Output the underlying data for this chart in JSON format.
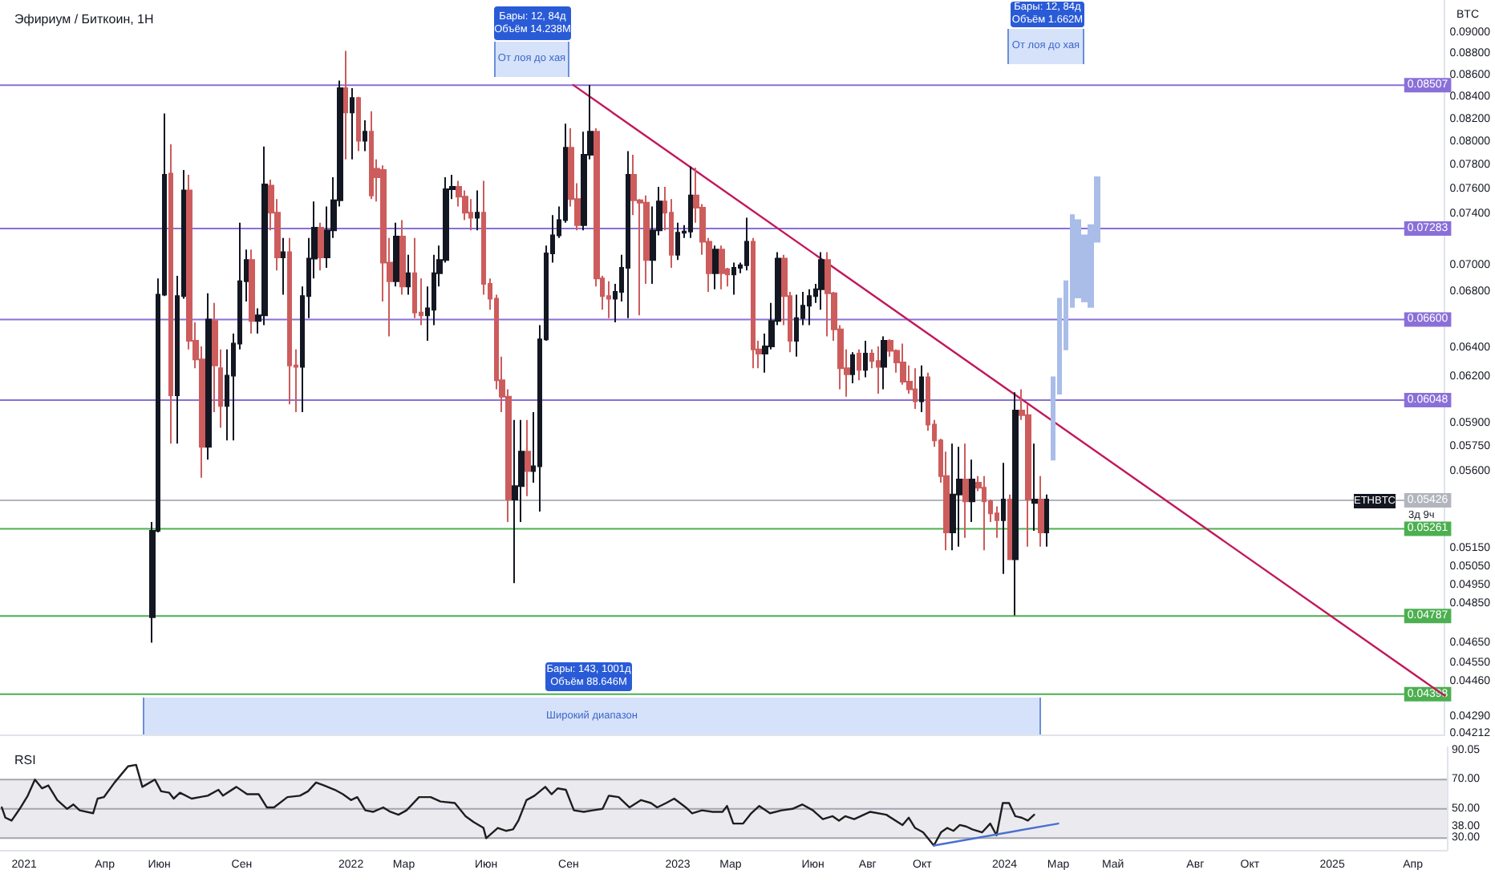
{
  "chart_data": [
    {
      "type": "candlestick",
      "title": "Эфириум / Биткоин, 1Н",
      "ylabel": "BTC",
      "log": "y",
      "tick_labels": "y",
      "xlim": [
        "2020-12-05",
        "2025-05-09"
      ],
      "ylim": [
        0.0421,
        0.0933
      ],
      "yticks": [
        {
          "value": 0.09,
          "label": "0.09000"
        },
        {
          "value": 0.088,
          "label": "0.08800"
        },
        {
          "value": 0.086,
          "label": "0.08600"
        },
        {
          "value": 0.084,
          "label": "0.08400"
        },
        {
          "value": 0.082,
          "label": "0.08200"
        },
        {
          "value": 0.08,
          "label": "0.08000"
        },
        {
          "value": 0.078,
          "label": "0.07800"
        },
        {
          "value": 0.076,
          "label": "0.07600"
        },
        {
          "value": 0.074,
          "label": "0.07400"
        },
        {
          "value": 0.07,
          "label": "0.07000"
        },
        {
          "value": 0.068,
          "label": "0.06800"
        },
        {
          "value": 0.064,
          "label": "0.06400"
        },
        {
          "value": 0.062,
          "label": "0.06200"
        },
        {
          "value": 0.059,
          "label": "0.05900"
        },
        {
          "value": 0.0575,
          "label": "0.05750"
        },
        {
          "value": 0.056,
          "label": "0.05600"
        },
        {
          "value": 0.0515,
          "label": "0.05150"
        },
        {
          "value": 0.0505,
          "label": "0.05050"
        },
        {
          "value": 0.0495,
          "label": "0.04950"
        },
        {
          "value": 0.0485,
          "label": "0.04850"
        },
        {
          "value": 0.0465,
          "label": "0.04650"
        },
        {
          "value": 0.0455,
          "label": "0.04550"
        },
        {
          "value": 0.0446,
          "label": "0.04460"
        },
        {
          "value": 0.0429,
          "label": "0.04290"
        },
        {
          "value": 0.04212,
          "label": "0.04212"
        }
      ],
      "ref_lines": [
        {
          "axis": "y",
          "value": 0.08507,
          "label": "0.08507",
          "color": "#8a6fd8"
        },
        {
          "axis": "y",
          "value": 0.07283,
          "label": "0.07283",
          "color": "#8a6fd8"
        },
        {
          "axis": "y",
          "value": 0.066,
          "label": "0.06600",
          "color": "#8a6fd8"
        },
        {
          "axis": "y",
          "value": 0.06048,
          "label": "0.06048",
          "color": "#8a6fd8"
        },
        {
          "axis": "y",
          "value": 0.05426,
          "label": "0.05426",
          "color": "#b2b5be"
        },
        {
          "axis": "y",
          "value": 0.05261,
          "label": "0.05261",
          "color": "#4caf50"
        },
        {
          "axis": "y",
          "value": 0.04787,
          "label": "0.04787",
          "color": "#4caf50"
        },
        {
          "axis": "y",
          "value": 0.04398,
          "label": "0.04398",
          "color": "#4caf50"
        }
      ],
      "annotations": [
        "Бары: 12, 84д\nОбъём 14.238M",
        "От лоя до хая",
        "Бары: 12, 84д\nОбъём 1.662M",
        "От лоя до хая",
        "Бары: 143, 1001д\nОбъём 88.646M",
        "Широкий диапазон",
        "ETHBTC",
        "3д 9ч"
      ],
      "series": [
        {
          "type": "line",
          "color": "#c2185b",
          "x": [
            "2022-09-07",
            "2025-05-09"
          ],
          "values": [
            0.0851,
            0.0439
          ]
        },
        {
          "type": "candlestick",
          "color": "#a9bde8",
          "x": [
            "2024-02-26",
            "2024-03-04",
            "2024-03-11",
            "2024-03-18",
            "2024-03-25",
            "2024-04-01",
            "2024-04-08",
            "2024-04-15"
          ],
          "ohlc": [
            [
              0.0567,
              0.062,
              0.0567,
              0.062
            ],
            [
              0.0609,
              0.0675,
              0.0609,
              0.0675
            ],
            [
              0.0639,
              0.0688,
              0.0639,
              0.0688
            ],
            [
              0.0669,
              0.0739,
              0.0669,
              0.0739
            ],
            [
              0.0676,
              0.0735,
              0.0676,
              0.0735
            ],
            [
              0.0673,
              0.0723,
              0.0673,
              0.0723
            ],
            [
              0.0669,
              0.0731,
              0.0669,
              0.0731
            ],
            [
              0.0718,
              0.077,
              0.0718,
              0.077
            ]
          ]
        },
        {
          "x": [
            "2021-05-24",
            "2021-05-31",
            "2021-06-07",
            "2021-06-14",
            "2021-06-21",
            "2021-06-28",
            "2021-07-05",
            "2021-07-12",
            "2021-07-19",
            "2021-07-26",
            "2021-08-02",
            "2021-08-09",
            "2021-08-16",
            "2021-08-23",
            "2021-08-30",
            "2021-09-06",
            "2021-09-13",
            "2021-09-20",
            "2021-09-27",
            "2021-10-04",
            "2021-10-11",
            "2021-10-18",
            "2021-10-25",
            "2021-11-01",
            "2021-11-08",
            "2021-11-15",
            "2021-11-22",
            "2021-11-29",
            "2021-12-06",
            "2021-12-13",
            "2021-12-20",
            "2021-12-27",
            "2022-01-03",
            "2022-01-10",
            "2022-01-17",
            "2022-01-24",
            "2022-01-31",
            "2022-02-07",
            "2022-02-14",
            "2022-02-21",
            "2022-02-28",
            "2022-03-07",
            "2022-03-14",
            "2022-03-21",
            "2022-03-28",
            "2022-04-04",
            "2022-04-11",
            "2022-04-18",
            "2022-04-25",
            "2022-05-02",
            "2022-05-09",
            "2022-05-16",
            "2022-05-23",
            "2022-05-30",
            "2022-06-06",
            "2022-06-13",
            "2022-06-20",
            "2022-06-27",
            "2022-07-04",
            "2022-07-11",
            "2022-07-18",
            "2022-07-25",
            "2022-08-01",
            "2022-08-08",
            "2022-08-15",
            "2022-08-22",
            "2022-08-29",
            "2022-09-05",
            "2022-09-12",
            "2022-09-19",
            "2022-09-26",
            "2022-10-03",
            "2022-10-10",
            "2022-10-17",
            "2022-10-24",
            "2022-10-31",
            "2022-11-07",
            "2022-11-14",
            "2022-11-21",
            "2022-11-28",
            "2022-12-05",
            "2022-12-12",
            "2022-12-19",
            "2022-12-26",
            "2023-01-02",
            "2023-01-09",
            "2023-01-16",
            "2023-01-23",
            "2023-01-30",
            "2023-02-06",
            "2023-02-13",
            "2023-02-20",
            "2023-02-27",
            "2023-03-06",
            "2023-03-13",
            "2023-03-20",
            "2023-03-27",
            "2023-04-03",
            "2023-04-10",
            "2023-04-17",
            "2023-04-24",
            "2023-05-01",
            "2023-05-08",
            "2023-05-15",
            "2023-05-22",
            "2023-05-29",
            "2023-06-05",
            "2023-06-12",
            "2023-06-19",
            "2023-06-26",
            "2023-07-03",
            "2023-07-10",
            "2023-07-17",
            "2023-07-24",
            "2023-07-31",
            "2023-08-07",
            "2023-08-14",
            "2023-08-21",
            "2023-08-28",
            "2023-09-04",
            "2023-09-11",
            "2023-09-18",
            "2023-09-25",
            "2023-10-02",
            "2023-10-09",
            "2023-10-16",
            "2023-10-23",
            "2023-10-30",
            "2023-11-06",
            "2023-11-13",
            "2023-11-20",
            "2023-11-27",
            "2023-12-04",
            "2023-12-11",
            "2023-12-18",
            "2023-12-25",
            "2024-01-01",
            "2024-01-08",
            "2024-01-15",
            "2024-01-22",
            "2024-01-29",
            "2024-02-05",
            "2024-02-12",
            "2024-02-19"
          ],
          "ohlc": [
            [
              0.0478,
              0.053,
              0.0465,
              0.0525
            ],
            [
              0.0525,
              0.069,
              0.0524,
              0.0678
            ],
            [
              0.0678,
              0.0825,
              0.0677,
              0.0772
            ],
            [
              0.0773,
              0.0798,
              0.0577,
              0.0608
            ],
            [
              0.0608,
              0.0692,
              0.0577,
              0.0677
            ],
            [
              0.0677,
              0.0776,
              0.0675,
              0.0759
            ],
            [
              0.0759,
              0.0772,
              0.0639,
              0.0645
            ],
            [
              0.0645,
              0.0658,
              0.0626,
              0.0632
            ],
            [
              0.0632,
              0.0641,
              0.0556,
              0.0575
            ],
            [
              0.0575,
              0.0679,
              0.0567,
              0.066
            ],
            [
              0.0659,
              0.0672,
              0.0597,
              0.0628
            ],
            [
              0.0626,
              0.0639,
              0.0587,
              0.0601
            ],
            [
              0.0601,
              0.0639,
              0.0579,
              0.0621
            ],
            [
              0.0621,
              0.065,
              0.0579,
              0.0643
            ],
            [
              0.0643,
              0.0733,
              0.0639,
              0.0688
            ],
            [
              0.0688,
              0.0712,
              0.0673,
              0.0704
            ],
            [
              0.0704,
              0.0712,
              0.065,
              0.0659
            ],
            [
              0.0659,
              0.0668,
              0.065,
              0.0663
            ],
            [
              0.0663,
              0.0796,
              0.0656,
              0.0764
            ],
            [
              0.0763,
              0.0768,
              0.0727,
              0.0741
            ],
            [
              0.0741,
              0.0752,
              0.0696,
              0.0706
            ],
            [
              0.0706,
              0.0721,
              0.0678,
              0.071
            ],
            [
              0.071,
              0.0721,
              0.0602,
              0.0628
            ],
            [
              0.0628,
              0.0639,
              0.0597,
              0.0627
            ],
            [
              0.0627,
              0.0684,
              0.0597,
              0.0677
            ],
            [
              0.0677,
              0.0721,
              0.0661,
              0.0705
            ],
            [
              0.0705,
              0.075,
              0.069,
              0.0729
            ],
            [
              0.0729,
              0.0733,
              0.0696,
              0.0706
            ],
            [
              0.0706,
              0.0746,
              0.0698,
              0.0727
            ],
            [
              0.0727,
              0.077,
              0.0721,
              0.0751
            ],
            [
              0.0751,
              0.0855,
              0.0746,
              0.0848
            ],
            [
              0.0848,
              0.0883,
              0.0785,
              0.0826
            ],
            [
              0.0826,
              0.0848,
              0.0785,
              0.0839
            ],
            [
              0.0839,
              0.084,
              0.0792,
              0.0801
            ],
            [
              0.0801,
              0.0819,
              0.0792,
              0.0809
            ],
            [
              0.0809,
              0.0827,
              0.0752,
              0.0755
            ],
            [
              0.0777,
              0.0785,
              0.075,
              0.077
            ],
            [
              0.0776,
              0.078,
              0.0673,
              0.0702
            ],
            [
              0.0702,
              0.0721,
              0.0648,
              0.0688
            ],
            [
              0.0688,
              0.0733,
              0.0684,
              0.0722
            ],
            [
              0.0722,
              0.0735,
              0.0678,
              0.0684
            ],
            [
              0.0684,
              0.0708,
              0.0678,
              0.0694
            ],
            [
              0.0694,
              0.0721,
              0.0661,
              0.0665
            ],
            [
              0.0665,
              0.069,
              0.0656,
              0.0663
            ],
            [
              0.0663,
              0.0684,
              0.0645,
              0.0668
            ],
            [
              0.0667,
              0.0708,
              0.0656,
              0.0694
            ],
            [
              0.0694,
              0.0715,
              0.0684,
              0.0704
            ],
            [
              0.0704,
              0.077,
              0.0702,
              0.076
            ],
            [
              0.076,
              0.0772,
              0.0752,
              0.0762
            ],
            [
              0.0762,
              0.0767,
              0.0746,
              0.0754
            ],
            [
              0.0754,
              0.0759,
              0.0735,
              0.0741
            ],
            [
              0.0741,
              0.0752,
              0.0727,
              0.0737
            ],
            [
              0.0737,
              0.0759,
              0.0727,
              0.0741
            ],
            [
              0.0741,
              0.0767,
              0.0678,
              0.0686
            ],
            [
              0.0686,
              0.069,
              0.0667,
              0.0675
            ],
            [
              0.0675,
              0.0678,
              0.0612,
              0.0618
            ],
            [
              0.0618,
              0.0634,
              0.0597,
              0.0607
            ],
            [
              0.0607,
              0.0612,
              0.053,
              0.0543
            ],
            [
              0.0543,
              0.0592,
              0.0496,
              0.0551
            ],
            [
              0.0551,
              0.0592,
              0.053,
              0.0572
            ],
            [
              0.0572,
              0.0592,
              0.0545,
              0.056
            ],
            [
              0.056,
              0.0597,
              0.0553,
              0.0563
            ],
            [
              0.0563,
              0.0656,
              0.0536,
              0.0646
            ],
            [
              0.0646,
              0.0715,
              0.0645,
              0.0709
            ],
            [
              0.0709,
              0.0739,
              0.0702,
              0.0723
            ],
            [
              0.0723,
              0.0746,
              0.0721,
              0.0735
            ],
            [
              0.0735,
              0.0816,
              0.0733,
              0.0795
            ],
            [
              0.0795,
              0.0812,
              0.0746,
              0.0752
            ],
            [
              0.0752,
              0.0765,
              0.0727,
              0.0731
            ],
            [
              0.0731,
              0.0809,
              0.0727,
              0.0789
            ],
            [
              0.0789,
              0.0851,
              0.0785,
              0.0809
            ],
            [
              0.0809,
              0.0812,
              0.0684,
              0.069
            ],
            [
              0.069,
              0.0692,
              0.0667,
              0.0677
            ],
            [
              0.0677,
              0.0688,
              0.0661,
              0.0675
            ],
            [
              0.0675,
              0.0686,
              0.0658,
              0.068
            ],
            [
              0.068,
              0.0708,
              0.0673,
              0.0698
            ],
            [
              0.0698,
              0.0792,
              0.0661,
              0.0772
            ],
            [
              0.0772,
              0.0789,
              0.0739,
              0.0751
            ],
            [
              0.0751,
              0.0752,
              0.0663,
              0.0749
            ],
            [
              0.0749,
              0.0755,
              0.0686,
              0.0704
            ],
            [
              0.0704,
              0.0746,
              0.0686,
              0.0727
            ],
            [
              0.0727,
              0.0762,
              0.0723,
              0.075
            ],
            [
              0.075,
              0.0762,
              0.0727,
              0.0741
            ],
            [
              0.0741,
              0.0752,
              0.0698,
              0.0708
            ],
            [
              0.0708,
              0.0733,
              0.0704,
              0.0725
            ],
            [
              0.0725,
              0.0731,
              0.0721,
              0.0726
            ],
            [
              0.0726,
              0.0779,
              0.0721,
              0.0755
            ],
            [
              0.0755,
              0.0778,
              0.0733,
              0.0745
            ],
            [
              0.0745,
              0.0748,
              0.0708,
              0.0718
            ],
            [
              0.0718,
              0.0721,
              0.068,
              0.0694
            ],
            [
              0.0694,
              0.0715,
              0.0682,
              0.0712
            ],
            [
              0.0712,
              0.0715,
              0.0682,
              0.0694
            ],
            [
              0.0697,
              0.0698,
              0.0684,
              0.0693
            ],
            [
              0.0693,
              0.0702,
              0.0678,
              0.0698
            ],
            [
              0.0698,
              0.0702,
              0.0694,
              0.07
            ],
            [
              0.07,
              0.0737,
              0.0696,
              0.0718
            ],
            [
              0.0718,
              0.0721,
              0.0626,
              0.0639
            ],
            [
              0.0639,
              0.0645,
              0.0626,
              0.0636
            ],
            [
              0.0636,
              0.065,
              0.0623,
              0.0641
            ],
            [
              0.0641,
              0.0672,
              0.0639,
              0.0659
            ],
            [
              0.0659,
              0.071,
              0.0656,
              0.0705
            ],
            [
              0.0705,
              0.0708,
              0.0656,
              0.0677
            ],
            [
              0.0677,
              0.068,
              0.0637,
              0.0645
            ],
            [
              0.0645,
              0.0678,
              0.0634,
              0.0661
            ],
            [
              0.0661,
              0.068,
              0.0656,
              0.067
            ],
            [
              0.067,
              0.0682,
              0.0656,
              0.0677
            ],
            [
              0.0677,
              0.0686,
              0.0672,
              0.0682
            ],
            [
              0.0682,
              0.071,
              0.0667,
              0.0704
            ],
            [
              0.0704,
              0.071,
              0.0648,
              0.0679
            ],
            [
              0.0679,
              0.068,
              0.0645,
              0.0653
            ],
            [
              0.0653,
              0.0656,
              0.0612,
              0.0626
            ],
            [
              0.0626,
              0.0639,
              0.0607,
              0.0622
            ],
            [
              0.0622,
              0.0637,
              0.0616,
              0.0635
            ],
            [
              0.0636,
              0.0639,
              0.0618,
              0.0625
            ],
            [
              0.0625,
              0.0645,
              0.062,
              0.0636
            ],
            [
              0.0636,
              0.0639,
              0.0626,
              0.0631
            ],
            [
              0.0631,
              0.0641,
              0.0609,
              0.0627
            ],
            [
              0.0627,
              0.0648,
              0.0612,
              0.0645
            ],
            [
              0.0645,
              0.0646,
              0.0634,
              0.0638
            ],
            [
              0.0638,
              0.0639,
              0.0623,
              0.063
            ],
            [
              0.063,
              0.0643,
              0.0615,
              0.0617
            ],
            [
              0.0617,
              0.0628,
              0.0609,
              0.0612
            ],
            [
              0.0612,
              0.0626,
              0.0599,
              0.0604
            ],
            [
              0.0604,
              0.0628,
              0.0597,
              0.062
            ],
            [
              0.062,
              0.0623,
              0.0585,
              0.0589
            ],
            [
              0.0589,
              0.0592,
              0.0575,
              0.0579
            ],
            [
              0.0579,
              0.058,
              0.0553,
              0.0557
            ],
            [
              0.0557,
              0.0572,
              0.0514,
              0.0524
            ],
            [
              0.0524,
              0.0577,
              0.0514,
              0.0546
            ],
            [
              0.0546,
              0.0575,
              0.0516,
              0.0555
            ],
            [
              0.0555,
              0.0577,
              0.0521,
              0.0542
            ],
            [
              0.0542,
              0.0567,
              0.053,
              0.0555
            ],
            [
              0.0553,
              0.0557,
              0.0548,
              0.055
            ],
            [
              0.055,
              0.0557,
              0.0514,
              0.0542
            ],
            [
              0.0542,
              0.0543,
              0.053,
              0.0535
            ],
            [
              0.0535,
              0.0539,
              0.0521,
              0.0531
            ],
            [
              0.0531,
              0.0565,
              0.0501,
              0.0543
            ],
            [
              0.0543,
              0.0546,
              0.0509,
              0.0509
            ],
            [
              0.0509,
              0.061,
              0.0479,
              0.0598
            ],
            [
              0.0598,
              0.0612,
              0.0592,
              0.0595
            ],
            [
              0.0595,
              0.0602,
              0.0516,
              0.0543
            ],
            [
              0.0541,
              0.0577,
              0.0525,
              0.0543
            ],
            [
              0.0543,
              0.0557,
              0.0516,
              0.0524
            ],
            [
              0.0524,
              0.0546,
              0.0516,
              0.0543
            ]
          ],
          "colors": [
            "#131722",
            "#131722",
            "#131722",
            "#cd5c5c",
            "#131722",
            "#131722",
            "#cd5c5c",
            "#cd5c5c",
            "#cd5c5c",
            "#131722",
            "#cd5c5c",
            "#cd5c5c",
            "#131722",
            "#131722",
            "#131722",
            "#131722",
            "#cd5c5c",
            "#131722",
            "#131722",
            "#cd5c5c",
            "#cd5c5c",
            "#131722",
            "#cd5c5c",
            "#cd5c5c",
            "#131722",
            "#131722",
            "#131722",
            "#cd5c5c",
            "#131722",
            "#131722",
            "#131722",
            "#cd5c5c",
            "#131722",
            "#cd5c5c",
            "#131722",
            "#cd5c5c",
            "#cd5c5c",
            "#cd5c5c",
            "#cd5c5c",
            "#131722",
            "#cd5c5c",
            "#131722",
            "#cd5c5c",
            "#cd5c5c",
            "#131722",
            "#131722",
            "#131722",
            "#131722",
            "#131722",
            "#cd5c5c",
            "#cd5c5c",
            "#cd5c5c",
            "#131722",
            "#cd5c5c",
            "#cd5c5c",
            "#cd5c5c",
            "#cd5c5c",
            "#cd5c5c",
            "#131722",
            "#131722",
            "#cd5c5c",
            "#131722",
            "#131722",
            "#131722",
            "#131722",
            "#131722",
            "#131722",
            "#cd5c5c",
            "#cd5c5c",
            "#131722",
            "#131722",
            "#cd5c5c",
            "#cd5c5c",
            "#cd5c5c",
            "#131722",
            "#131722",
            "#131722",
            "#cd5c5c",
            "#cd5c5c",
            "#cd5c5c",
            "#131722",
            "#131722",
            "#cd5c5c",
            "#cd5c5c",
            "#131722",
            "#131722",
            "#131722",
            "#cd5c5c",
            "#cd5c5c",
            "#cd5c5c",
            "#131722",
            "#cd5c5c",
            "#cd5c5c",
            "#131722",
            "#131722",
            "#131722",
            "#cd5c5c",
            "#cd5c5c",
            "#131722",
            "#131722",
            "#131722",
            "#cd5c5c",
            "#cd5c5c",
            "#131722",
            "#131722",
            "#131722",
            "#131722",
            "#131722",
            "#cd5c5c",
            "#cd5c5c",
            "#cd5c5c",
            "#cd5c5c",
            "#131722",
            "#cd5c5c",
            "#131722",
            "#cd5c5c",
            "#cd5c5c",
            "#131722",
            "#cd5c5c",
            "#cd5c5c",
            "#cd5c5c",
            "#cd5c5c",
            "#cd5c5c",
            "#131722",
            "#cd5c5c",
            "#cd5c5c",
            "#cd5c5c",
            "#cd5c5c",
            "#131722",
            "#131722",
            "#cd5c5c",
            "#131722",
            "#cd5c5c",
            "#cd5c5c",
            "#cd5c5c",
            "#cd5c5c",
            "#131722",
            "#cd5c5c",
            "#131722",
            "#cd5c5c",
            "#cd5c5c",
            "#131722",
            "#cd5c5c",
            "#131722"
          ]
        }
      ]
    },
    {
      "type": "line",
      "title": "RSI",
      "xlim": [
        "2020-12-05",
        "2025-05-09"
      ],
      "ylim": [
        22,
        92
      ],
      "xticks": [
        {
          "value": "2021-01-01",
          "label": "2021"
        },
        {
          "value": "2021-04-01",
          "label": "Апр"
        },
        {
          "value": "2021-06-01",
          "label": "Июн"
        },
        {
          "value": "2021-09-01",
          "label": "Сен"
        },
        {
          "value": "2022-01-01",
          "label": "2022"
        },
        {
          "value": "2022-03-01",
          "label": "Мар"
        },
        {
          "value": "2022-06-01",
          "label": "Июн"
        },
        {
          "value": "2022-09-01",
          "label": "Сен"
        },
        {
          "value": "2023-01-01",
          "label": "2023"
        },
        {
          "value": "2023-03-01",
          "label": "Мар"
        },
        {
          "value": "2023-06-01",
          "label": "Июн"
        },
        {
          "value": "2023-08-01",
          "label": "Авг"
        },
        {
          "value": "2023-10-01",
          "label": "Окт"
        },
        {
          "value": "2024-01-01",
          "label": "2024"
        },
        {
          "value": "2024-03-01",
          "label": "Мар"
        },
        {
          "value": "2024-05-01",
          "label": "Май"
        },
        {
          "value": "2024-08-01",
          "label": "Авг"
        },
        {
          "value": "2024-10-01",
          "label": "Окт"
        },
        {
          "value": "2025-01-01",
          "label": "2025"
        },
        {
          "value": "2025-04-01",
          "label": "Апр"
        }
      ],
      "yticks": [
        {
          "value": 90.05,
          "label": "90.05"
        },
        {
          "value": 70,
          "label": "70.00"
        },
        {
          "value": 50,
          "label": "50.00"
        },
        {
          "value": 38,
          "label": "38.00"
        },
        {
          "value": 30,
          "label": "30.00"
        }
      ],
      "bands": [
        {
          "axis": "y",
          "from": 30,
          "to": 70,
          "color": "#ebebef"
        }
      ],
      "ref_lines": [
        {
          "axis": "y",
          "value": 70,
          "label": null,
          "color": "#a3a6af"
        },
        {
          "axis": "y",
          "value": 50,
          "label": null,
          "color": "#a3a6af"
        },
        {
          "axis": "y",
          "value": 30,
          "label": null,
          "color": "#a3a6af"
        }
      ],
      "series": [
        {
          "color": "#1e1e1e",
          "x": [
            "2020-12-07",
            "2020-12-11",
            "2020-12-18",
            "2020-12-27",
            "2021-01-05",
            "2021-01-13",
            "2021-01-21",
            "2021-01-28",
            "2021-02-07",
            "2021-02-18",
            "2021-02-25",
            "2021-03-04",
            "2021-03-19",
            "2021-03-24",
            "2021-03-31",
            "2021-04-12",
            "2021-04-27",
            "2021-05-06",
            "2021-05-13",
            "2021-05-27",
            "2021-06-03",
            "2021-06-12",
            "2021-06-17",
            "2021-06-24",
            "2021-07-07",
            "2021-07-25",
            "2021-08-06",
            "2021-08-11",
            "2021-08-26",
            "2021-09-07",
            "2021-09-20",
            "2021-09-29",
            "2021-10-07",
            "2021-10-22",
            "2021-11-05",
            "2021-11-14",
            "2021-11-23",
            "2021-12-02",
            "2021-12-14",
            "2021-12-23",
            "2022-01-01",
            "2022-01-08",
            "2022-01-17",
            "2022-01-26",
            "2022-02-06",
            "2022-02-14",
            "2022-02-23",
            "2022-03-04",
            "2022-03-18",
            "2022-03-31",
            "2022-04-11",
            "2022-04-27",
            "2022-05-09",
            "2022-05-18",
            "2022-05-29",
            "2022-06-01",
            "2022-06-14",
            "2022-06-23",
            "2022-07-01",
            "2022-07-07",
            "2022-07-16",
            "2022-07-25",
            "2022-08-06",
            "2022-08-13",
            "2022-08-20",
            "2022-08-29",
            "2022-09-07",
            "2022-09-18",
            "2022-09-28",
            "2022-10-09",
            "2022-10-16",
            "2022-10-27",
            "2022-11-08",
            "2022-11-21",
            "2022-12-02",
            "2022-12-09",
            "2022-12-19",
            "2022-12-28",
            "2023-01-10",
            "2023-01-17",
            "2023-01-28",
            "2023-02-09",
            "2023-02-20",
            "2023-02-25",
            "2023-03-04",
            "2023-03-15",
            "2023-03-24",
            "2023-04-02",
            "2023-04-14",
            "2023-04-27",
            "2023-05-09",
            "2023-05-20",
            "2023-06-01",
            "2023-06-12",
            "2023-06-23",
            "2023-06-30",
            "2023-07-07",
            "2023-07-17",
            "2023-08-04",
            "2023-08-22",
            "2023-09-09",
            "2023-09-16",
            "2023-09-23",
            "2023-10-02",
            "2023-10-14",
            "2023-10-22",
            "2023-10-29",
            "2023-11-05",
            "2023-11-12",
            "2023-11-19",
            "2023-11-26",
            "2023-12-07",
            "2023-12-16",
            "2023-12-23",
            "2023-12-30",
            "2024-01-06",
            "2024-01-13",
            "2024-01-20",
            "2024-01-27",
            "2024-02-03"
          ],
          "values": [
            51,
            44,
            42,
            50,
            59,
            70,
            64,
            66,
            56,
            50,
            53,
            49,
            47,
            57,
            58,
            68,
            79,
            80,
            65,
            70,
            62,
            61,
            57,
            61,
            57,
            59,
            63,
            59,
            65,
            60,
            60,
            51,
            51,
            58,
            59,
            62,
            68,
            66,
            63,
            60,
            56,
            58,
            49,
            48,
            51,
            48,
            46,
            49,
            58,
            58,
            55,
            54,
            45,
            41,
            37,
            30,
            37,
            35,
            36,
            42,
            56,
            59,
            65,
            60,
            64,
            63,
            49,
            48,
            49,
            50,
            59,
            58,
            51,
            56,
            54,
            51,
            54,
            57,
            51,
            47,
            49,
            48,
            48,
            52,
            40,
            40,
            47,
            52,
            47,
            49,
            50,
            53,
            49,
            43,
            45,
            42,
            45,
            43,
            48,
            46,
            39,
            44,
            37,
            34,
            25,
            34,
            37,
            35,
            39,
            38,
            36,
            34,
            40,
            32,
            54,
            54,
            45,
            44,
            42,
            46
          ]
        },
        {
          "color": "#4a6fd0",
          "x": [
            "2023-10-14",
            "2024-03-01"
          ],
          "values": [
            25,
            40
          ]
        }
      ]
    }
  ]
}
